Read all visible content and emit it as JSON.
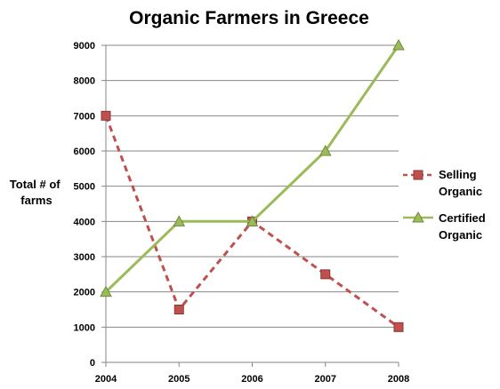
{
  "chart_data": {
    "type": "line",
    "title": "Organic Farmers in Greece",
    "xlabel": "",
    "ylabel": "Total # of farms",
    "ylabel_lines": [
      "Total # of",
      "farms"
    ],
    "categories": [
      "2004",
      "2005",
      "2006",
      "2007",
      "2008"
    ],
    "ylim": [
      0,
      9000
    ],
    "yticks": [
      "0",
      "1000",
      "2000",
      "3000",
      "4000",
      "5000",
      "6000",
      "7000",
      "8000",
      "9000"
    ],
    "grid": true,
    "legend_position": "right",
    "series": [
      {
        "name": "Selling Organic",
        "name_lines": [
          "Selling",
          "Organic"
        ],
        "values": [
          7000,
          1500,
          4000,
          2500,
          1000
        ],
        "color": "#c0504d",
        "line_style": "dashed",
        "marker": "square"
      },
      {
        "name": "Certified Organic",
        "name_lines": [
          "Certified",
          "Organic"
        ],
        "values": [
          2000,
          4000,
          4000,
          6000,
          9000
        ],
        "color": "#9bbb59",
        "line_style": "solid",
        "marker": "triangle"
      }
    ]
  }
}
